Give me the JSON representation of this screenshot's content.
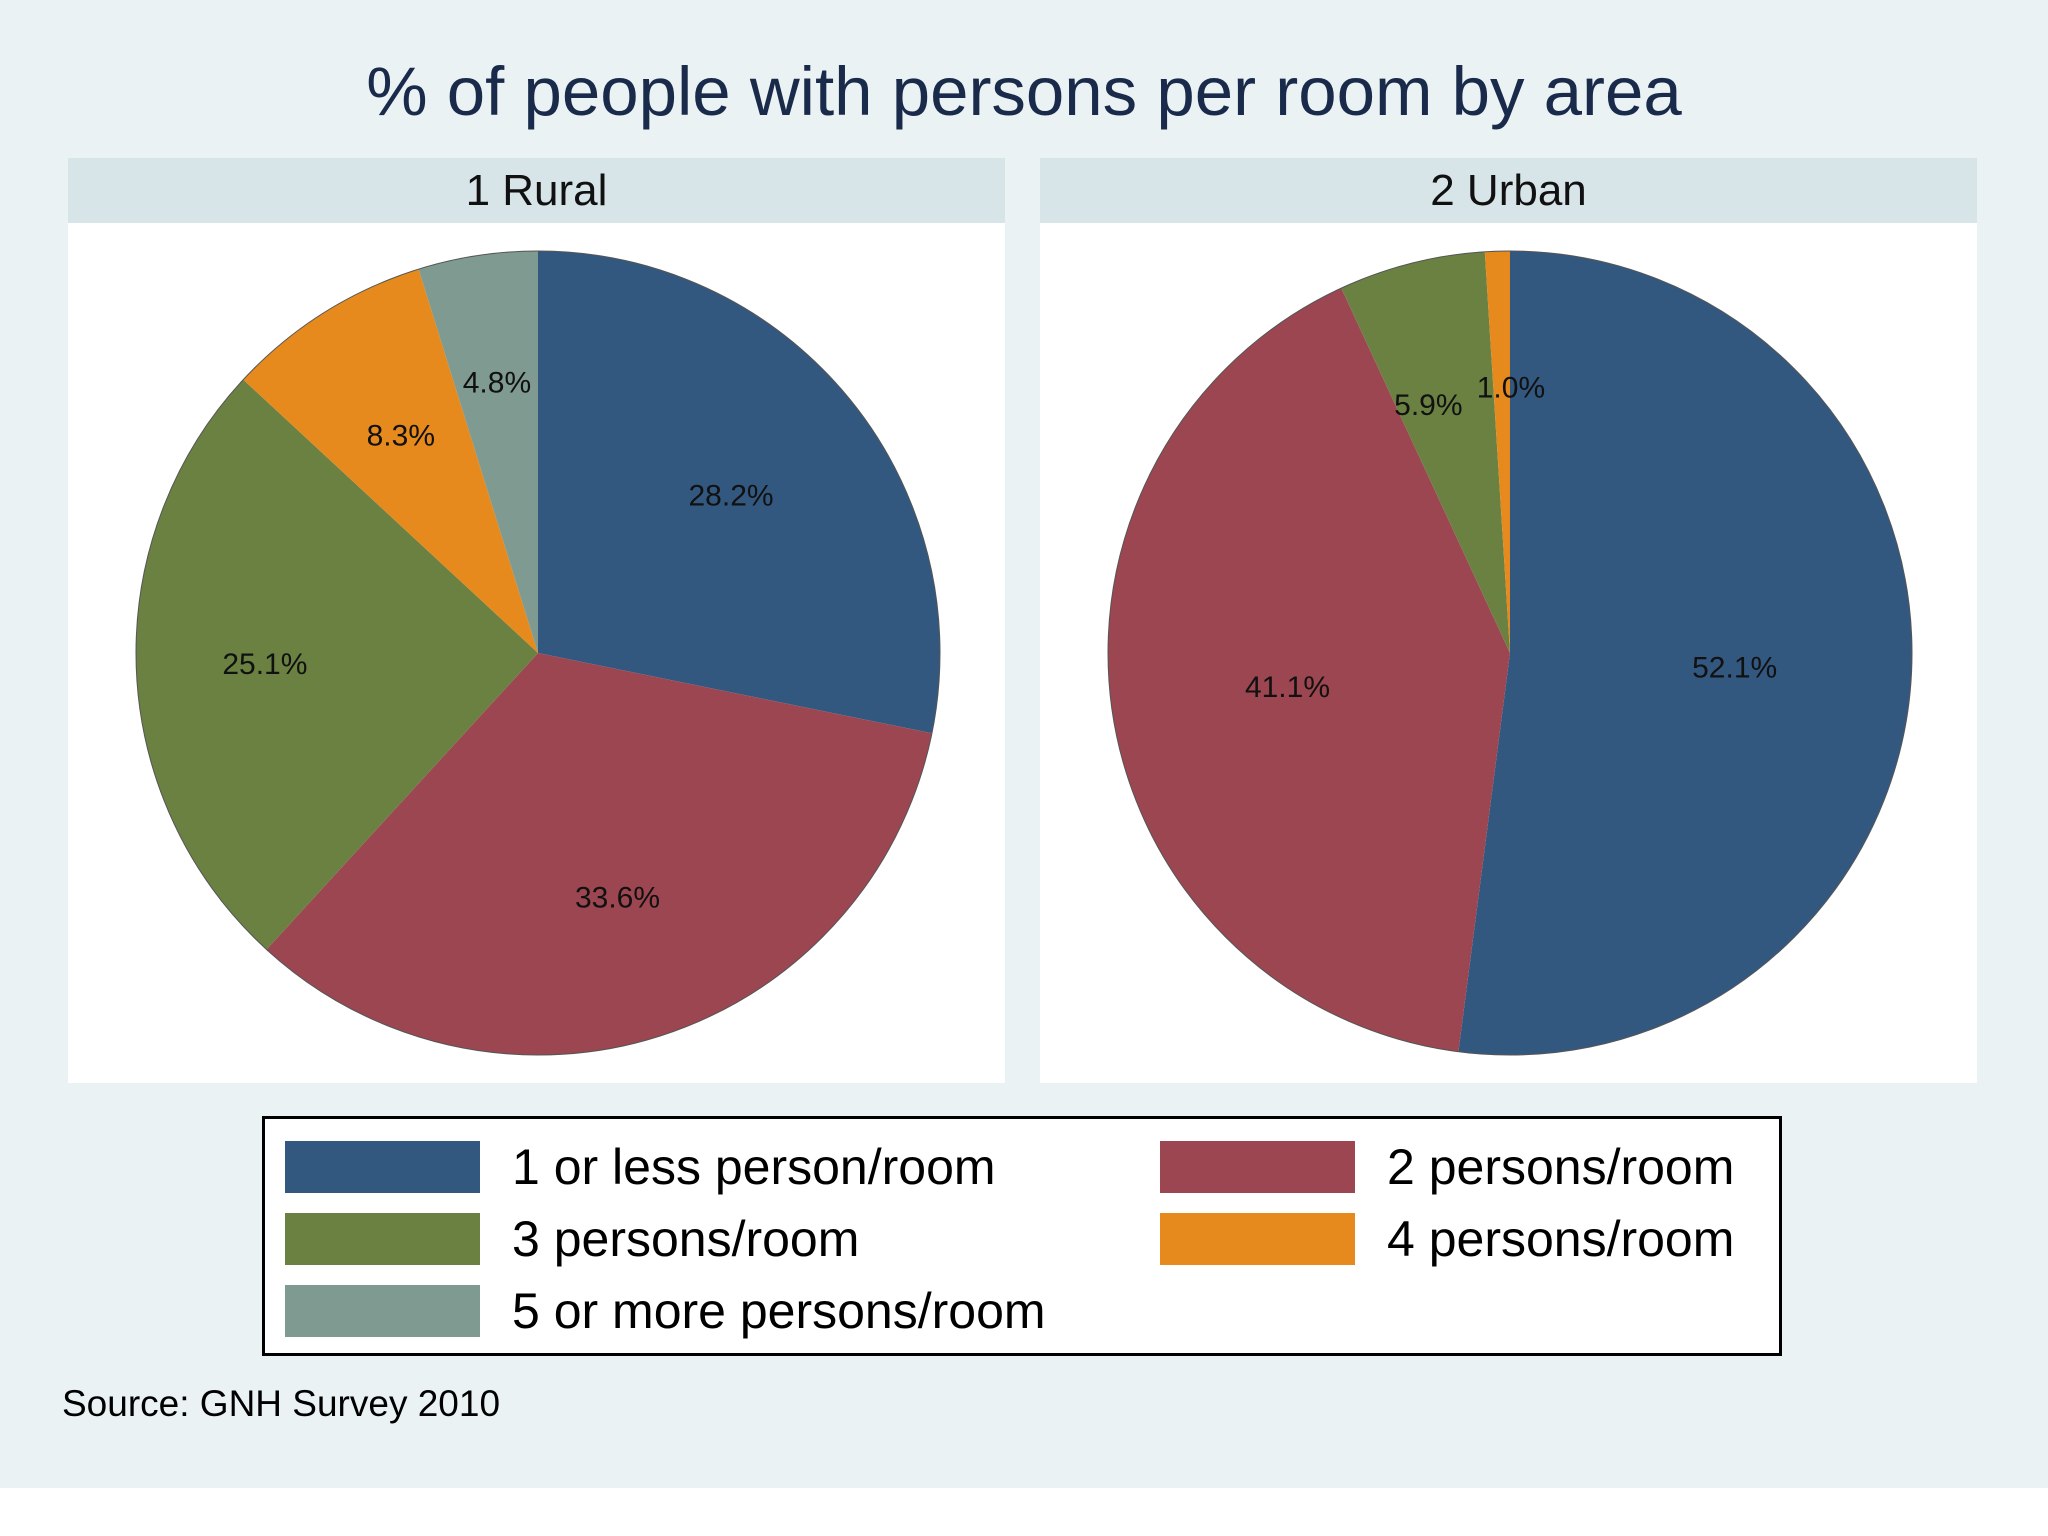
{
  "title": "% of people with persons per room by area",
  "note": "Source: GNH Survey 2010",
  "legend": [
    {
      "label": "1 or less person/room",
      "color": "#335880"
    },
    {
      "label": "2 persons/room",
      "color": "#9c4651"
    },
    {
      "label": "3 persons/room",
      "color": "#6a8142"
    },
    {
      "label": "4 persons/room",
      "color": "#e68a1e"
    },
    {
      "label": "5 or more persons/room",
      "color": "#7f9a91"
    }
  ],
  "panels": [
    {
      "label": "1 Rural"
    },
    {
      "label": "2 Urban"
    }
  ],
  "chart_data": [
    {
      "type": "pie",
      "panel": "1 Rural",
      "categories": [
        "1 or less person/room",
        "2 persons/room",
        "3 persons/room",
        "4 persons/room",
        "5 or more persons/room"
      ],
      "values": [
        28.2,
        33.6,
        25.1,
        8.3,
        4.8
      ],
      "labels": [
        "28.2%",
        "33.6%",
        "25.1%",
        "8.3%",
        "4.8%"
      ],
      "colors": [
        "#335880",
        "#9c4651",
        "#6a8142",
        "#e68a1e",
        "#7f9a91"
      ],
      "start": "12 o'clock",
      "direction": "clockwise"
    },
    {
      "type": "pie",
      "panel": "2 Urban",
      "categories": [
        "1 or less person/room",
        "2 persons/room",
        "3 persons/room",
        "4 persons/room"
      ],
      "values": [
        52.1,
        41.1,
        5.9,
        1.0
      ],
      "labels": [
        "52.1%",
        "41.1%",
        "5.9%",
        "1.0%"
      ],
      "colors": [
        "#335880",
        "#9c4651",
        "#6a8142",
        "#e68a1e"
      ],
      "start": "12 o'clock",
      "direction": "clockwise"
    }
  ]
}
